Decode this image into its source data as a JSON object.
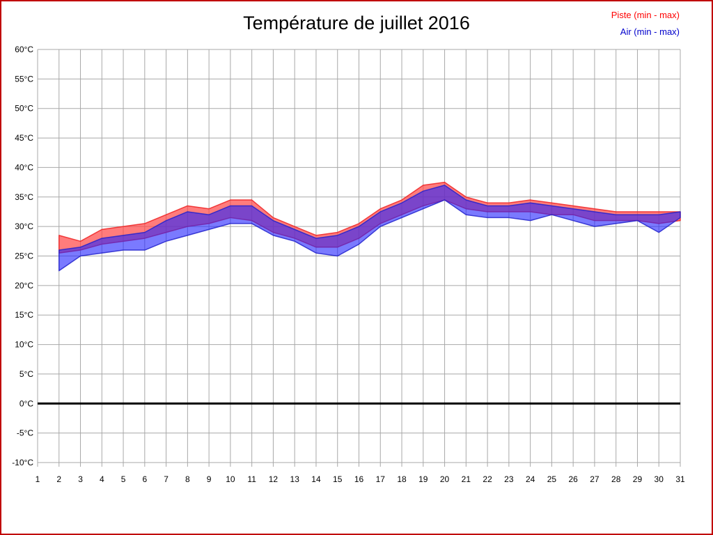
{
  "title": "Température de juillet 2016",
  "legend": [
    {
      "key": "piste",
      "label": "Piste (min - max)",
      "color": "#ff0000"
    },
    {
      "key": "air",
      "label": "Air (min - max)",
      "color": "#0000cc"
    }
  ],
  "chart_data": {
    "type": "area",
    "title": "Température de juillet 2016",
    "xlabel": "",
    "ylabel": "°C",
    "ylim": [
      -10,
      60
    ],
    "xlim": [
      1,
      31
    ],
    "grid": true,
    "legend_position": "top-right",
    "zero_line": 0,
    "x_ticks": [
      1,
      2,
      3,
      4,
      5,
      6,
      7,
      8,
      9,
      10,
      11,
      12,
      13,
      14,
      15,
      16,
      17,
      18,
      19,
      20,
      21,
      22,
      23,
      24,
      25,
      26,
      27,
      28,
      29,
      30,
      31
    ],
    "y_tick_values": [
      60,
      55,
      50,
      45,
      40,
      35,
      30,
      25,
      20,
      15,
      10,
      5,
      0,
      -5,
      -10
    ],
    "y_tick_labels": [
      "60°C",
      "55°C",
      "50°C",
      "45°C",
      "40°C",
      "35°C",
      "30°C",
      "25°C",
      "20°C",
      "15°C",
      "10°C",
      "5°C",
      "0°C",
      "-5°C",
      "-10°C"
    ],
    "days": [
      2,
      3,
      4,
      5,
      6,
      7,
      8,
      9,
      10,
      11,
      12,
      13,
      14,
      15,
      16,
      17,
      18,
      19,
      20,
      21,
      22,
      23,
      24,
      25,
      26,
      27,
      28,
      29,
      30,
      31
    ],
    "series": [
      {
        "key": "piste",
        "name": "Piste (min - max)",
        "fill": "#ff4444",
        "fill_opacity": 0.7,
        "stroke": "#ee2222",
        "min": [
          25.5,
          26,
          27,
          27.5,
          28,
          29,
          30,
          30.5,
          31.5,
          31,
          29,
          28,
          26.5,
          26.5,
          28,
          30.5,
          32,
          33.5,
          34.5,
          33,
          32.5,
          32.5,
          32.5,
          32,
          32,
          31,
          31,
          31,
          30.5,
          31
        ],
        "max": [
          28.5,
          27.5,
          29.5,
          30,
          30.5,
          32,
          33.5,
          33,
          34.5,
          34.5,
          31.5,
          30,
          28.5,
          29,
          30.5,
          33,
          34.5,
          37,
          37.5,
          35,
          34,
          34,
          34.5,
          34,
          33.5,
          33,
          32.5,
          32.5,
          32.5,
          32.5
        ]
      },
      {
        "key": "air",
        "name": "Air (min - max)",
        "fill": "#2222ff",
        "fill_opacity": 0.6,
        "stroke": "#2222cc",
        "min": [
          22.5,
          25,
          25.5,
          26,
          26,
          27.5,
          28.5,
          29.5,
          30.5,
          30.5,
          28.5,
          27.5,
          25.5,
          25,
          27,
          30,
          31.5,
          33,
          34.5,
          32,
          31.5,
          31.5,
          31,
          32,
          31,
          30,
          30.5,
          31,
          29,
          31.5
        ],
        "max": [
          26,
          26.5,
          28,
          28.5,
          29,
          31,
          32.5,
          32,
          33.5,
          33.5,
          31,
          29.5,
          28,
          28.5,
          30,
          32.5,
          34,
          36,
          37,
          34.5,
          33.5,
          33.5,
          34,
          33.5,
          33,
          32.5,
          32,
          32,
          32,
          32.5
        ]
      }
    ],
    "style": {
      "grid_color": "#a8a8a8",
      "zero_line_color": "#000000",
      "border_color": "#c00000"
    }
  }
}
